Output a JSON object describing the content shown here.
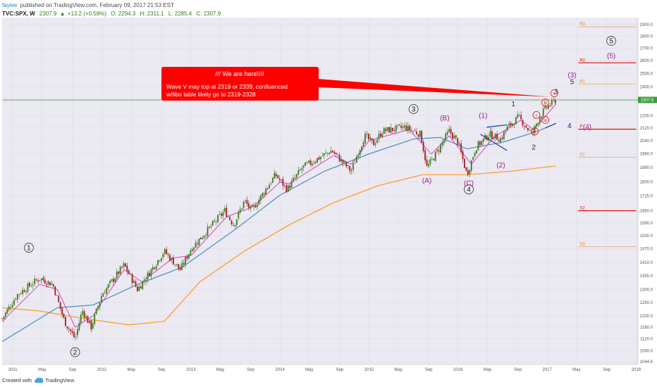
{
  "header": {
    "user": "faylee",
    "published": "published on TradingView.com, February 09, 2017 21:53 EST",
    "symbol": "TVC:SPX, W",
    "last": "2307.9",
    "change": "+13.2 (+0.58%)",
    "open": "O: 2294.3",
    "high": "H: 2311.1",
    "low": "L: 2285.4",
    "close": "C: 2307.9"
  },
  "price_tag": "2307.9",
  "callout": {
    "title": "/// We are here!///",
    "line1": "Wave V may top at 2319 or 2339, confluenced",
    "line2": "w/fibo table likely go to 2319-2328"
  },
  "footer": {
    "created": "Created with",
    "brand": "TradingView"
  },
  "colors": {
    "candle_up": "#3a7a1e",
    "candle_down": "#a01c1c",
    "ma_short": "#e040c8",
    "ma_mid": "#3a86c0",
    "ma_long": "#ff9a1a",
    "callout": "#ff0000",
    "price_line": "#3aa03a",
    "pivot_red": "#e01010",
    "pivot_orange": "#e08a30",
    "wave_purple": "#a0208a",
    "wave_navy": "#1a237e"
  },
  "chart_data": {
    "type": "candlestick",
    "timeframe": "W",
    "y_ticks": [
      1044.6,
      1080.0,
      1120.0,
      1160.0,
      1200.0,
      1250.0,
      1300.0,
      1355.0,
      1410.0,
      1470.0,
      1530.0,
      1590.0,
      1650.0,
      1725.0,
      1800.0,
      1880.0,
      1960.0,
      2040.0,
      2120.0,
      2200.0,
      2300.0,
      2400.0,
      2500.0,
      2600.0,
      2700.0,
      2800.0,
      2900.0
    ],
    "x_ticks": [
      {
        "label": "2011",
        "t": 2011.0
      },
      {
        "label": "May",
        "t": 2011.33
      },
      {
        "label": "Sep",
        "t": 2011.67
      },
      {
        "label": "2012",
        "t": 2012.0
      },
      {
        "label": "May",
        "t": 2012.33
      },
      {
        "label": "Sep",
        "t": 2012.67
      },
      {
        "label": "2013",
        "t": 2013.0
      },
      {
        "label": "May",
        "t": 2013.33
      },
      {
        "label": "Sep",
        "t": 2013.67
      },
      {
        "label": "2014",
        "t": 2014.0
      },
      {
        "label": "May",
        "t": 2014.33
      },
      {
        "label": "Sep",
        "t": 2014.67
      },
      {
        "label": "2015",
        "t": 2015.0
      },
      {
        "label": "May",
        "t": 2015.33
      },
      {
        "label": "Sep",
        "t": 2015.67
      },
      {
        "label": "2016",
        "t": 2016.0
      },
      {
        "label": "May",
        "t": 2016.33
      },
      {
        "label": "Sep",
        "t": 2016.67
      },
      {
        "label": "2017",
        "t": 2017.0
      },
      {
        "label": "May",
        "t": 2017.33
      },
      {
        "label": "Sep",
        "t": 2017.67
      },
      {
        "label": "2018",
        "t": 2018.0
      }
    ],
    "price_path": [
      [
        2010.88,
        1190
      ],
      [
        2011.05,
        1280
      ],
      [
        2011.3,
        1345
      ],
      [
        2011.45,
        1320
      ],
      [
        2011.58,
        1180
      ],
      [
        2011.7,
        1120
      ],
      [
        2011.78,
        1220
      ],
      [
        2011.88,
        1160
      ],
      [
        2012.0,
        1280
      ],
      [
        2012.25,
        1400
      ],
      [
        2012.4,
        1300
      ],
      [
        2012.5,
        1350
      ],
      [
        2012.7,
        1460
      ],
      [
        2012.88,
        1380
      ],
      [
        2013.0,
        1470
      ],
      [
        2013.38,
        1650
      ],
      [
        2013.48,
        1580
      ],
      [
        2013.6,
        1700
      ],
      [
        2013.68,
        1650
      ],
      [
        2013.95,
        1840
      ],
      [
        2014.08,
        1760
      ],
      [
        2014.25,
        1880
      ],
      [
        2014.58,
        1980
      ],
      [
        2014.8,
        1860
      ],
      [
        2014.95,
        2070
      ],
      [
        2015.05,
        2020
      ],
      [
        2015.15,
        2100
      ],
      [
        2015.4,
        2125
      ],
      [
        2015.58,
        2080
      ],
      [
        2015.65,
        1880
      ],
      [
        2015.75,
        1960
      ],
      [
        2015.9,
        2100
      ],
      [
        2016.0,
        2030
      ],
      [
        2016.1,
        1840
      ],
      [
        2016.2,
        2000
      ],
      [
        2016.35,
        2080
      ],
      [
        2016.48,
        2050
      ],
      [
        2016.55,
        2120
      ],
      [
        2016.68,
        2190
      ],
      [
        2016.83,
        2080
      ],
      [
        2016.92,
        2200
      ],
      [
        2017.0,
        2260
      ],
      [
        2017.1,
        2308
      ]
    ],
    "ma_short": [
      [
        2010.88,
        1180
      ],
      [
        2011.3,
        1320
      ],
      [
        2011.5,
        1300
      ],
      [
        2011.7,
        1160
      ],
      [
        2011.9,
        1200
      ],
      [
        2012.25,
        1380
      ],
      [
        2012.45,
        1330
      ],
      [
        2012.8,
        1430
      ],
      [
        2013.0,
        1440
      ],
      [
        2013.4,
        1620
      ],
      [
        2013.7,
        1670
      ],
      [
        2014.0,
        1800
      ],
      [
        2014.1,
        1790
      ],
      [
        2014.6,
        1950
      ],
      [
        2014.8,
        1900
      ],
      [
        2015.0,
        2040
      ],
      [
        2015.45,
        2110
      ],
      [
        2015.7,
        1960
      ],
      [
        2015.9,
        2070
      ],
      [
        2016.15,
        1900
      ],
      [
        2016.4,
        2060
      ],
      [
        2016.7,
        2170
      ],
      [
        2016.85,
        2110
      ],
      [
        2017.1,
        2280
      ]
    ],
    "ma_mid": [
      [
        2010.88,
        1110
      ],
      [
        2011.5,
        1230
      ],
      [
        2011.9,
        1240
      ],
      [
        2012.4,
        1320
      ],
      [
        2012.9,
        1390
      ],
      [
        2013.5,
        1560
      ],
      [
        2014.0,
        1730
      ],
      [
        2014.5,
        1860
      ],
      [
        2015.0,
        1960
      ],
      [
        2015.5,
        2050
      ],
      [
        2015.8,
        2060
      ],
      [
        2016.1,
        1990
      ],
      [
        2016.5,
        2030
      ],
      [
        2016.9,
        2100
      ],
      [
        2017.1,
        2150
      ]
    ],
    "ma_long": [
      [
        2010.88,
        1230
      ],
      [
        2011.3,
        1218
      ],
      [
        2011.8,
        1190
      ],
      [
        2012.3,
        1168
      ],
      [
        2012.7,
        1180
      ],
      [
        2013.1,
        1330
      ],
      [
        2013.6,
        1460
      ],
      [
        2014.1,
        1580
      ],
      [
        2014.6,
        1690
      ],
      [
        2015.1,
        1780
      ],
      [
        2015.6,
        1840
      ],
      [
        2016.1,
        1840
      ],
      [
        2016.6,
        1860
      ],
      [
        2017.1,
        1890
      ]
    ],
    "pivot_levels": [
      {
        "label": "R3",
        "value": 2880,
        "color": "#e08a30"
      },
      {
        "label": "R2",
        "value": 2582,
        "color": "#e01010"
      },
      {
        "label": "R1",
        "value": 2420,
        "color": "#e08a30"
      },
      {
        "label": "P",
        "value": 2112,
        "color": "#e01010"
      },
      {
        "label": "S1",
        "value": 1940,
        "color": "#e08a30"
      },
      {
        "label": "S2",
        "value": 1650,
        "color": "#e01010"
      },
      {
        "label": "S3",
        "value": 1480,
        "color": "#e08a30"
      }
    ],
    "wave_labels": [
      {
        "text": "1",
        "t": 2011.18,
        "y": 1475,
        "style": "circle"
      },
      {
        "text": "2",
        "t": 2011.7,
        "y": 1075,
        "style": "circle"
      },
      {
        "text": "3",
        "t": 2015.5,
        "y": 2245,
        "style": "circle"
      },
      {
        "text": "4",
        "t": 2016.12,
        "y": 1760,
        "style": "circle"
      },
      {
        "text": "5",
        "t": 2017.72,
        "y": 2760,
        "style": "circle"
      },
      {
        "text": "(A)",
        "t": 2015.65,
        "y": 1795,
        "style": "purple"
      },
      {
        "text": "(B)",
        "t": 2015.85,
        "y": 2170,
        "style": "purple"
      },
      {
        "text": "(C)",
        "t": 2016.12,
        "y": 1782,
        "style": "purple"
      },
      {
        "text": "(1)",
        "t": 2016.28,
        "y": 2185,
        "style": "purple"
      },
      {
        "text": "(2)",
        "t": 2016.48,
        "y": 1880,
        "style": "purple"
      },
      {
        "text": "(3)",
        "t": 2017.28,
        "y": 2470,
        "style": "purple"
      },
      {
        "text": "(4)",
        "t": 2017.45,
        "y": 2112,
        "style": "purple"
      },
      {
        "text": "(5)",
        "t": 2017.72,
        "y": 2620,
        "style": "purple"
      },
      {
        "text": "1",
        "t": 2016.62,
        "y": 2265,
        "style": "navy"
      },
      {
        "text": "2",
        "t": 2016.85,
        "y": 1985,
        "style": "navy"
      },
      {
        "text": "4",
        "t": 2017.25,
        "y": 2120,
        "style": "navy"
      },
      {
        "text": "5",
        "t": 2017.28,
        "y": 2420,
        "style": "navy"
      },
      {
        "text": "3",
        "t": 2017.1,
        "y": 2350,
        "style": "navy"
      },
      {
        "text": "i",
        "t": 2016.88,
        "y": 2205,
        "style": "ring"
      },
      {
        "text": "ii",
        "t": 2016.86,
        "y": 2098,
        "style": "ring"
      },
      {
        "text": "iii",
        "t": 2016.98,
        "y": 2290,
        "style": "ring"
      },
      {
        "text": "iv",
        "t": 2016.98,
        "y": 2172,
        "style": "ring"
      },
      {
        "text": "v",
        "t": 2017.08,
        "y": 2355,
        "style": "ring"
      }
    ],
    "annotation_lines": [
      {
        "from": [
          2016.32,
          2125
        ],
        "to": [
          2016.55,
          2140
        ]
      },
      {
        "from": [
          2016.25,
          2080
        ],
        "to": [
          2016.55,
          1980
        ]
      },
      {
        "from": [
          2016.98,
          2120
        ],
        "to": [
          2017.1,
          2150
        ]
      }
    ]
  }
}
